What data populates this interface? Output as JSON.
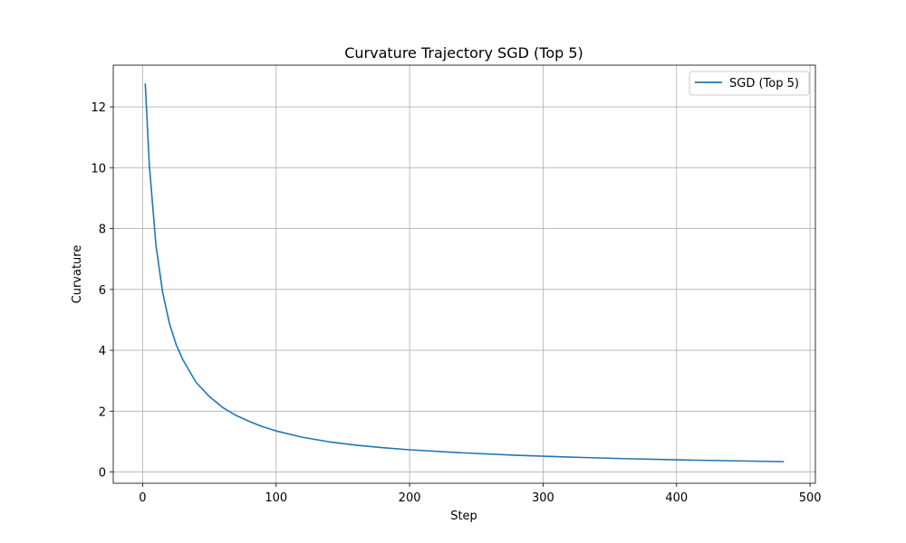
{
  "chart_data": {
    "type": "line",
    "title": "Curvature Trajectory SGD (Top 5)",
    "xlabel": "Step",
    "ylabel": "Curvature",
    "xlim": [
      -22,
      504
    ],
    "ylim": [
      -0.37,
      13.37
    ],
    "xticks": [
      0,
      100,
      200,
      300,
      400,
      500
    ],
    "yticks": [
      0,
      2,
      4,
      6,
      8,
      10,
      12
    ],
    "grid": true,
    "legend_position": "top-right",
    "colors": {
      "series": "#1f77b4"
    },
    "series": [
      {
        "name": "SGD (Top 5)",
        "x": [
          2,
          5,
          10,
          15,
          20,
          25,
          30,
          40,
          50,
          60,
          70,
          80,
          90,
          100,
          120,
          140,
          160,
          180,
          200,
          240,
          280,
          320,
          360,
          400,
          440,
          480
        ],
        "y": [
          12.75,
          10.1,
          7.45,
          5.9,
          4.9,
          4.2,
          3.7,
          2.95,
          2.48,
          2.12,
          1.86,
          1.66,
          1.49,
          1.35,
          1.14,
          0.99,
          0.88,
          0.8,
          0.73,
          0.63,
          0.55,
          0.49,
          0.44,
          0.4,
          0.37,
          0.34
        ]
      }
    ]
  }
}
